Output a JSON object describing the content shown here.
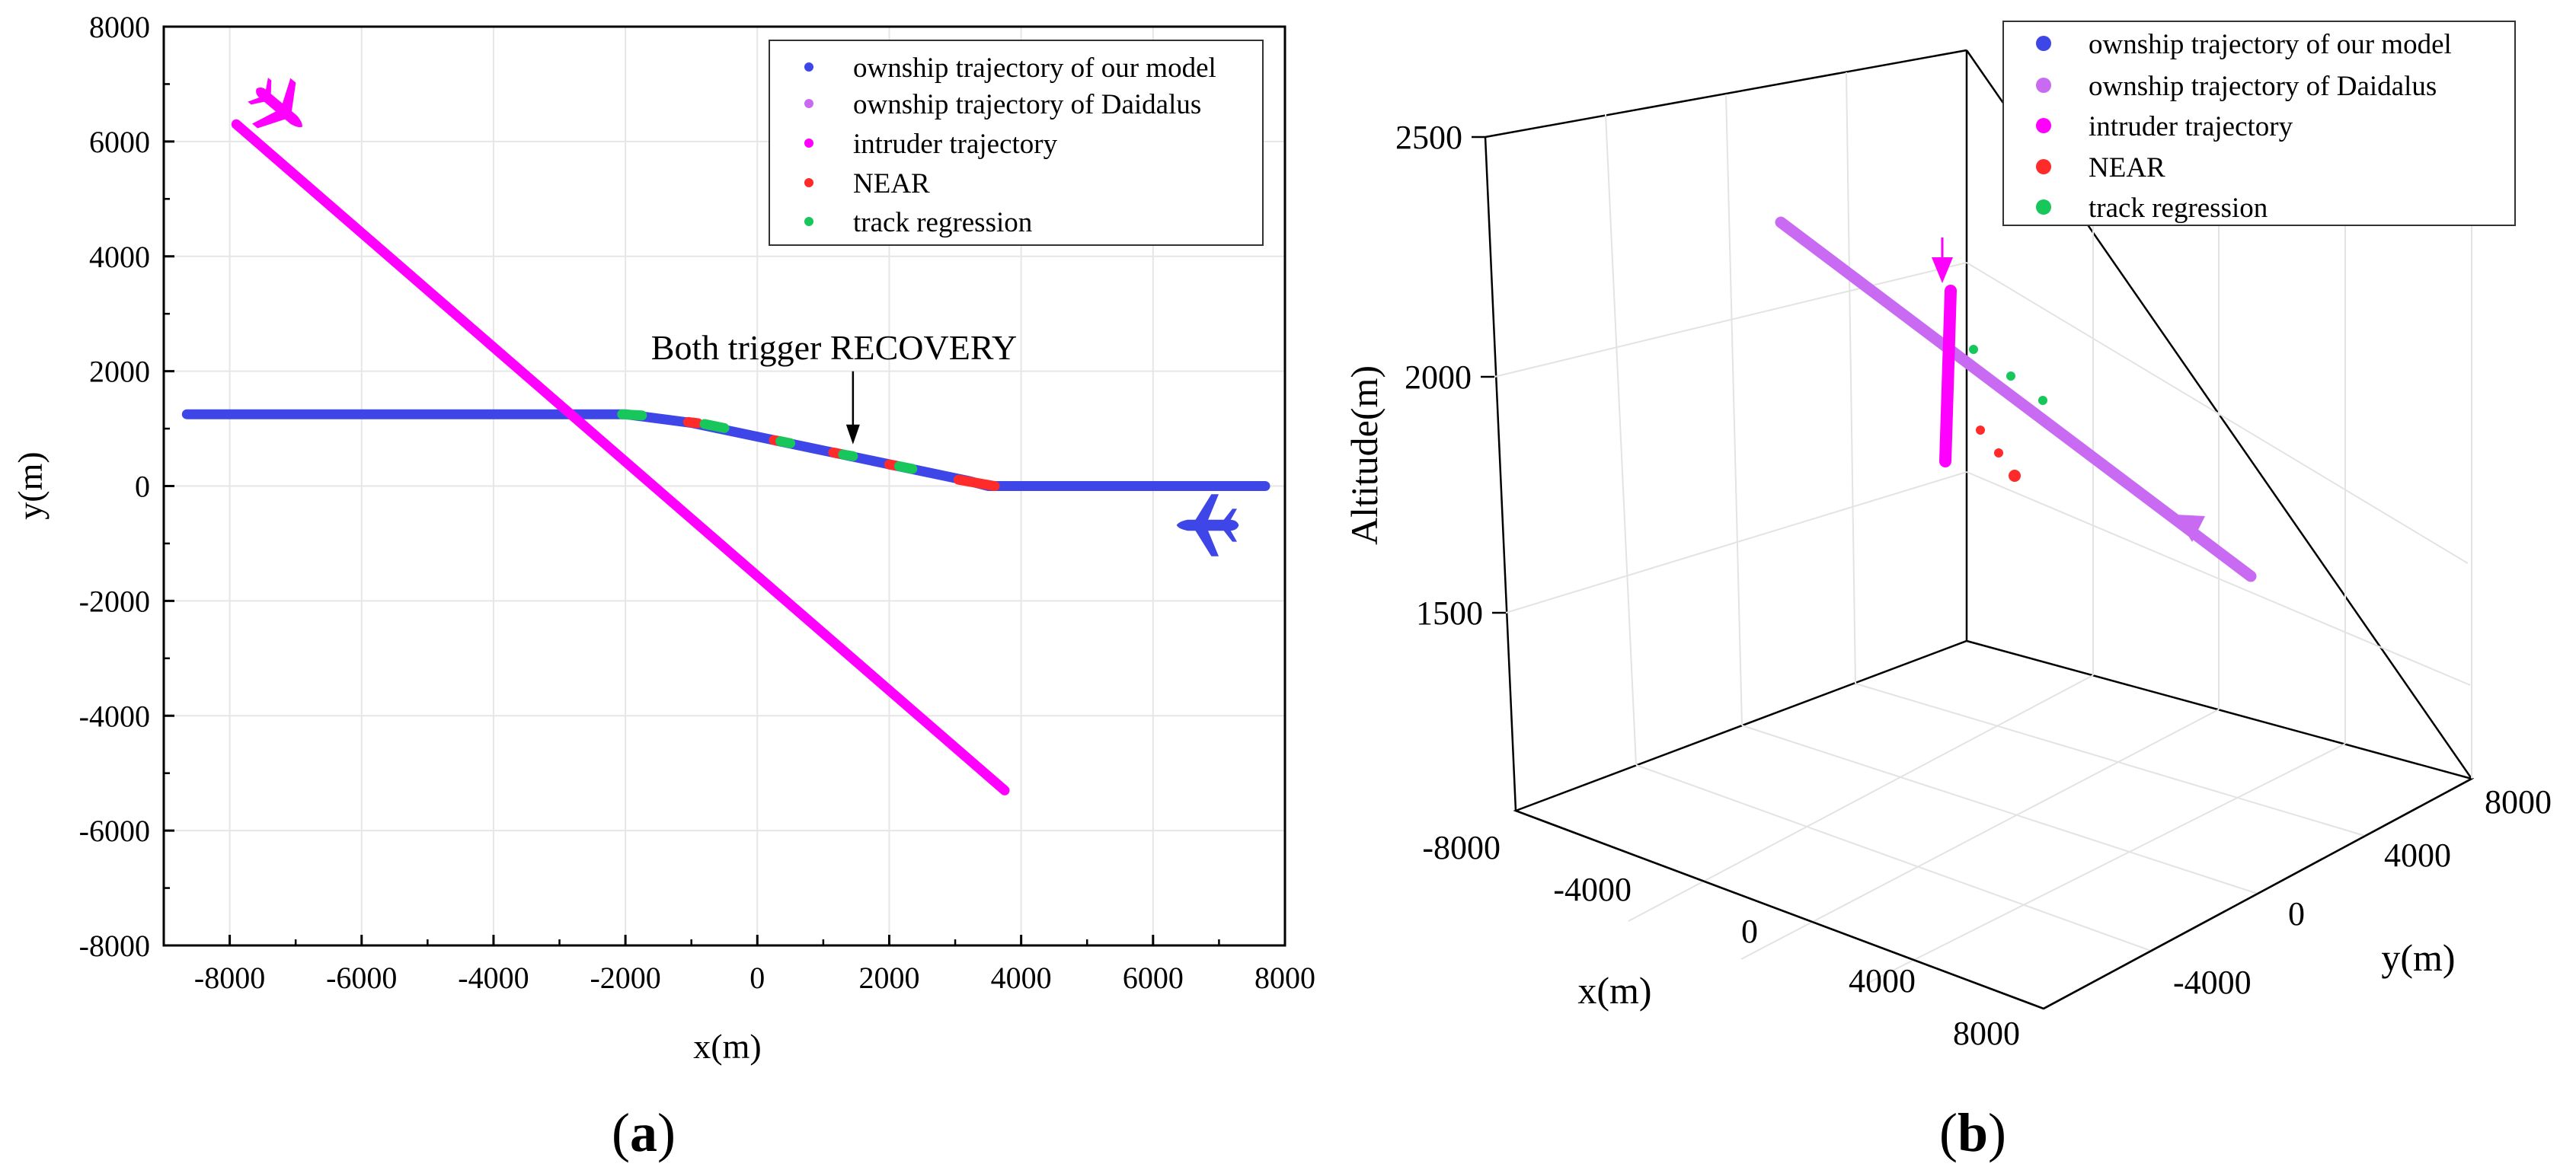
{
  "colors": {
    "model": "#3f46e8",
    "daidalus": "#c86bf2",
    "intruder": "#ff00ff",
    "near": "#ff2a2a",
    "track": "#18c75c",
    "grid": "#e6e6e6",
    "axis": "#000000"
  },
  "chart_data": [
    {
      "panel_label": "a",
      "type": "scatter",
      "xlabel": "x(m)",
      "ylabel": "y(m)",
      "xlim": [
        -9000,
        8000
      ],
      "ylim": [
        -8000,
        8000
      ],
      "xticks": [
        -8000,
        -6000,
        -4000,
        -2000,
        0,
        2000,
        4000,
        6000,
        8000
      ],
      "yticks": [
        -8000,
        -6000,
        -4000,
        -2000,
        0,
        2000,
        4000,
        6000,
        8000
      ],
      "annotation": "Both trigger RECOVERY",
      "annotation_target": [
        1450,
        700
      ],
      "legend": [
        "ownship trajectory of our model",
        "ownship trajectory of Daidalus",
        "intruder trajectory",
        "NEAR",
        "track regression"
      ],
      "series": [
        {
          "name": "ownship trajectory of our model",
          "color_key": "model",
          "x": [
            -8650,
            -2000,
            -1000,
            3200,
            3500,
            7700
          ],
          "y": [
            1250,
            1250,
            1100,
            90,
            0,
            0
          ]
        },
        {
          "name": "intruder trajectory",
          "color_key": "intruder",
          "x": [
            -7900,
            3750
          ],
          "y": [
            6300,
            -5300
          ]
        }
      ],
      "highlights": [
        {
          "name": "track regression",
          "color_key": "track",
          "x": [
            -2050,
            -1750
          ],
          "y": [
            1250,
            1230
          ]
        },
        {
          "name": "NEAR",
          "color_key": "near",
          "x": [
            -1050,
            -900
          ],
          "y": [
            1115,
            1095
          ]
        },
        {
          "name": "track regression",
          "color_key": "track",
          "x": [
            -800,
            -500
          ],
          "y": [
            1080,
            1010
          ]
        },
        {
          "name": "NEAR",
          "color_key": "near",
          "x": [
            250,
            350
          ],
          "y": [
            800,
            780
          ]
        },
        {
          "name": "track regression",
          "color_key": "track",
          "x": [
            350,
            500
          ],
          "y": [
            780,
            745
          ]
        },
        {
          "name": "NEAR",
          "color_key": "near",
          "x": [
            1150,
            1300
          ],
          "y": [
            585,
            550
          ]
        },
        {
          "name": "track regression",
          "color_key": "track",
          "x": [
            1300,
            1450
          ],
          "y": [
            550,
            520
          ]
        },
        {
          "name": "NEAR",
          "color_key": "near",
          "x": [
            2000,
            2150
          ],
          "y": [
            375,
            345
          ]
        },
        {
          "name": "track regression",
          "color_key": "track",
          "x": [
            2150,
            2350
          ],
          "y": [
            345,
            300
          ]
        },
        {
          "name": "NEAR",
          "color_key": "near",
          "x": [
            3050,
            3600
          ],
          "y": [
            110,
            0
          ]
        }
      ]
    },
    {
      "panel_label": "b",
      "type": "scatter",
      "xlabel": "x(m)",
      "ylabel": "y(m)",
      "zlabel": "Altitude(m)",
      "xticks": [
        -8000,
        -4000,
        0,
        4000,
        8000
      ],
      "yticks": [
        -4000,
        0,
        4000,
        8000
      ],
      "zticks": [
        1500,
        2000,
        2500
      ],
      "legend": [
        "ownship trajectory of our model",
        "ownship trajectory of Daidalus",
        "intruder trajectory",
        "NEAR",
        "track regression"
      ],
      "series": [
        {
          "name": "ownship trajectory of Daidalus",
          "color_key": "daidalus",
          "x": [
            -8000,
            8000
          ],
          "y": [
            1250,
            0
          ],
          "z": [
            2300,
            1800
          ]
        },
        {
          "name": "intruder trajectory",
          "color_key": "intruder",
          "x": [
            -4000,
            -4000
          ],
          "y": [
            2000,
            2000
          ],
          "z": [
            2180,
            1800
          ]
        }
      ]
    }
  ]
}
